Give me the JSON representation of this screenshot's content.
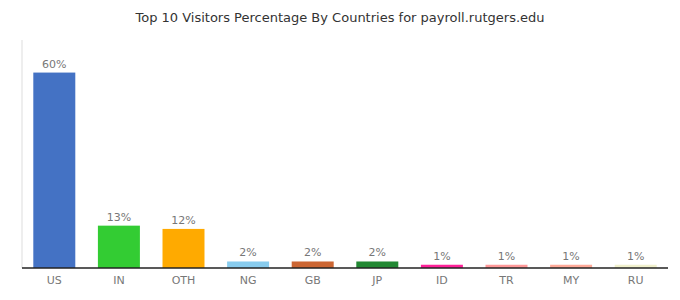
{
  "chart_data": {
    "type": "bar",
    "title": "Top 10 Visitors Percentage By Countries for payroll.rutgers.edu",
    "categories": [
      "US",
      "IN",
      "OTH",
      "NG",
      "GB",
      "JP",
      "ID",
      "TR",
      "MY",
      "RU"
    ],
    "values": [
      60,
      13,
      12,
      2,
      2,
      2,
      1,
      1,
      1,
      1
    ],
    "value_labels": [
      "60%",
      "13%",
      "12%",
      "2%",
      "2%",
      "2%",
      "1%",
      "1%",
      "1%",
      "1%"
    ],
    "colors": [
      "#4472c4",
      "#33cc33",
      "#ffaa00",
      "#88ccee",
      "#cc6633",
      "#228833",
      "#ff2299",
      "#ff9999",
      "#ffaa99",
      "#f0f0cc"
    ],
    "ylim": [
      0,
      70
    ],
    "data_labels": true,
    "tick_labels": "x",
    "grid": false
  }
}
